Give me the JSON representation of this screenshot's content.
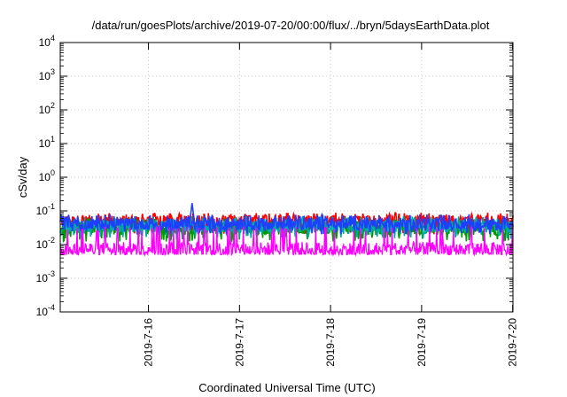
{
  "chart_data": {
    "type": "line",
    "title": "/data/run/goesPlots/archive/2019-07-20/00:00/flux/../bryn/5daysEarthData.plot",
    "xlabel": "Coordinated Universal Time (UTC)",
    "ylabel": "cSv/day",
    "y_scale": "log",
    "ylim": [
      0.0001,
      10000
    ],
    "xlim": [
      "2019-07-15T00:45",
      "2019-07-20T00:05"
    ],
    "grid": true,
    "y_ticks": [
      {
        "base": "10",
        "exp": "-4",
        "value": 0.0001
      },
      {
        "base": "10",
        "exp": "-3",
        "value": 0.001
      },
      {
        "base": "10",
        "exp": "-2",
        "value": 0.01
      },
      {
        "base": "10",
        "exp": "-1",
        "value": 0.1
      },
      {
        "base": "10",
        "exp": "0",
        "value": 1
      },
      {
        "base": "10",
        "exp": "1",
        "value": 10
      },
      {
        "base": "10",
        "exp": "2",
        "value": 100
      },
      {
        "base": "10",
        "exp": "3",
        "value": 1000
      },
      {
        "base": "10",
        "exp": "4",
        "value": 10000
      }
    ],
    "x_ticks": [
      {
        "label": "2019-7-16",
        "value": "2019-07-16T00:00"
      },
      {
        "label": "2019-7-17",
        "value": "2019-07-17T00:00"
      },
      {
        "label": "2019-7-18",
        "value": "2019-07-18T00:00"
      },
      {
        "label": "2019-7-19",
        "value": "2019-07-19T00:00"
      },
      {
        "label": "2019-7-20",
        "value": "2019-07-20T00:00"
      }
    ],
    "series": [
      {
        "color": "#ff0000",
        "typical": 0.05,
        "low": 0.02,
        "high": 0.09
      },
      {
        "color": "#009900",
        "typical": 0.03,
        "low": 0.012,
        "high": 0.06
      },
      {
        "color": "#00aaaa",
        "typical": 0.035,
        "low": 0.015,
        "high": 0.07
      },
      {
        "color": "#1f3fff",
        "typical": 0.04,
        "low": 0.02,
        "high": 0.08
      },
      {
        "color": "#ff00ff",
        "typical": 0.007,
        "low": 0.005,
        "high": 0.035
      }
    ],
    "notable_points": [
      {
        "series_color": "#1f3fff",
        "x": "2019-07-16T11:30",
        "y": 0.17
      }
    ]
  }
}
